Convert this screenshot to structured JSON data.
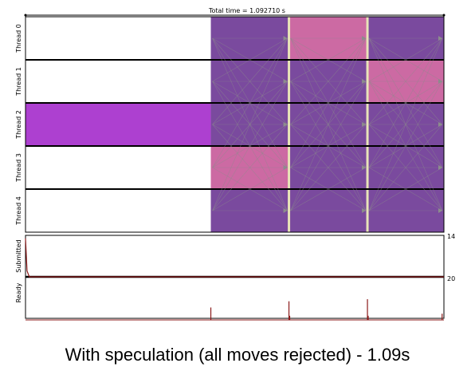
{
  "chart_data": {
    "type": "timeline",
    "title": "Total time = 1.092710 s",
    "total_time_s": 1.09271,
    "threads": [
      "Thread 0",
      "Thread 1",
      "Thread 2",
      "Thread 3",
      "Thread 4"
    ],
    "segments": [
      {
        "thread": 0,
        "start": 0.484,
        "end": 0.688,
        "kind": "purple"
      },
      {
        "thread": 0,
        "start": 0.688,
        "end": 0.893,
        "kind": "pink"
      },
      {
        "thread": 0,
        "start": 0.893,
        "end": 1.09271,
        "kind": "purple"
      },
      {
        "thread": 1,
        "start": 0.484,
        "end": 0.688,
        "kind": "purple"
      },
      {
        "thread": 1,
        "start": 0.688,
        "end": 0.893,
        "kind": "purple"
      },
      {
        "thread": 1,
        "start": 0.893,
        "end": 1.09271,
        "kind": "pink"
      },
      {
        "thread": 2,
        "start": 0.0,
        "end": 0.484,
        "kind": "magenta"
      },
      {
        "thread": 2,
        "start": 0.484,
        "end": 0.688,
        "kind": "purple"
      },
      {
        "thread": 2,
        "start": 0.688,
        "end": 0.893,
        "kind": "purple"
      },
      {
        "thread": 2,
        "start": 0.893,
        "end": 1.09271,
        "kind": "purple"
      },
      {
        "thread": 3,
        "start": 0.484,
        "end": 0.688,
        "kind": "pink"
      },
      {
        "thread": 3,
        "start": 0.688,
        "end": 0.893,
        "kind": "purple"
      },
      {
        "thread": 3,
        "start": 0.893,
        "end": 1.09271,
        "kind": "purple"
      },
      {
        "thread": 4,
        "start": 0.484,
        "end": 0.688,
        "kind": "purple"
      },
      {
        "thread": 4,
        "start": 0.688,
        "end": 0.893,
        "kind": "purple"
      },
      {
        "thread": 4,
        "start": 0.893,
        "end": 1.09271,
        "kind": "purple"
      }
    ],
    "sync_times": [
      0.688,
      0.893
    ],
    "submitted": {
      "label": "Submitted",
      "max_label": "14",
      "ymax": 14,
      "points": [
        [
          0,
          13
        ],
        [
          0.004,
          2
        ],
        [
          0.01,
          0
        ]
      ]
    },
    "ready": {
      "label": "Ready",
      "max_label": "20",
      "ymax": 20,
      "spikes": [
        [
          0.484,
          6
        ],
        [
          0.688,
          9
        ],
        [
          0.69,
          2
        ],
        [
          0.893,
          10
        ],
        [
          0.895,
          2
        ],
        [
          1.088,
          3
        ]
      ]
    },
    "colors": {
      "purple": "#7a4a9e",
      "pink": "#cc6aa3",
      "magenta": "#ad40d0",
      "sync": "#e8e4b8",
      "arrow": "#8c8c8c",
      "spike": "#8b1a1a"
    }
  },
  "caption": "With speculation (all moves rejected) - 1.09s"
}
